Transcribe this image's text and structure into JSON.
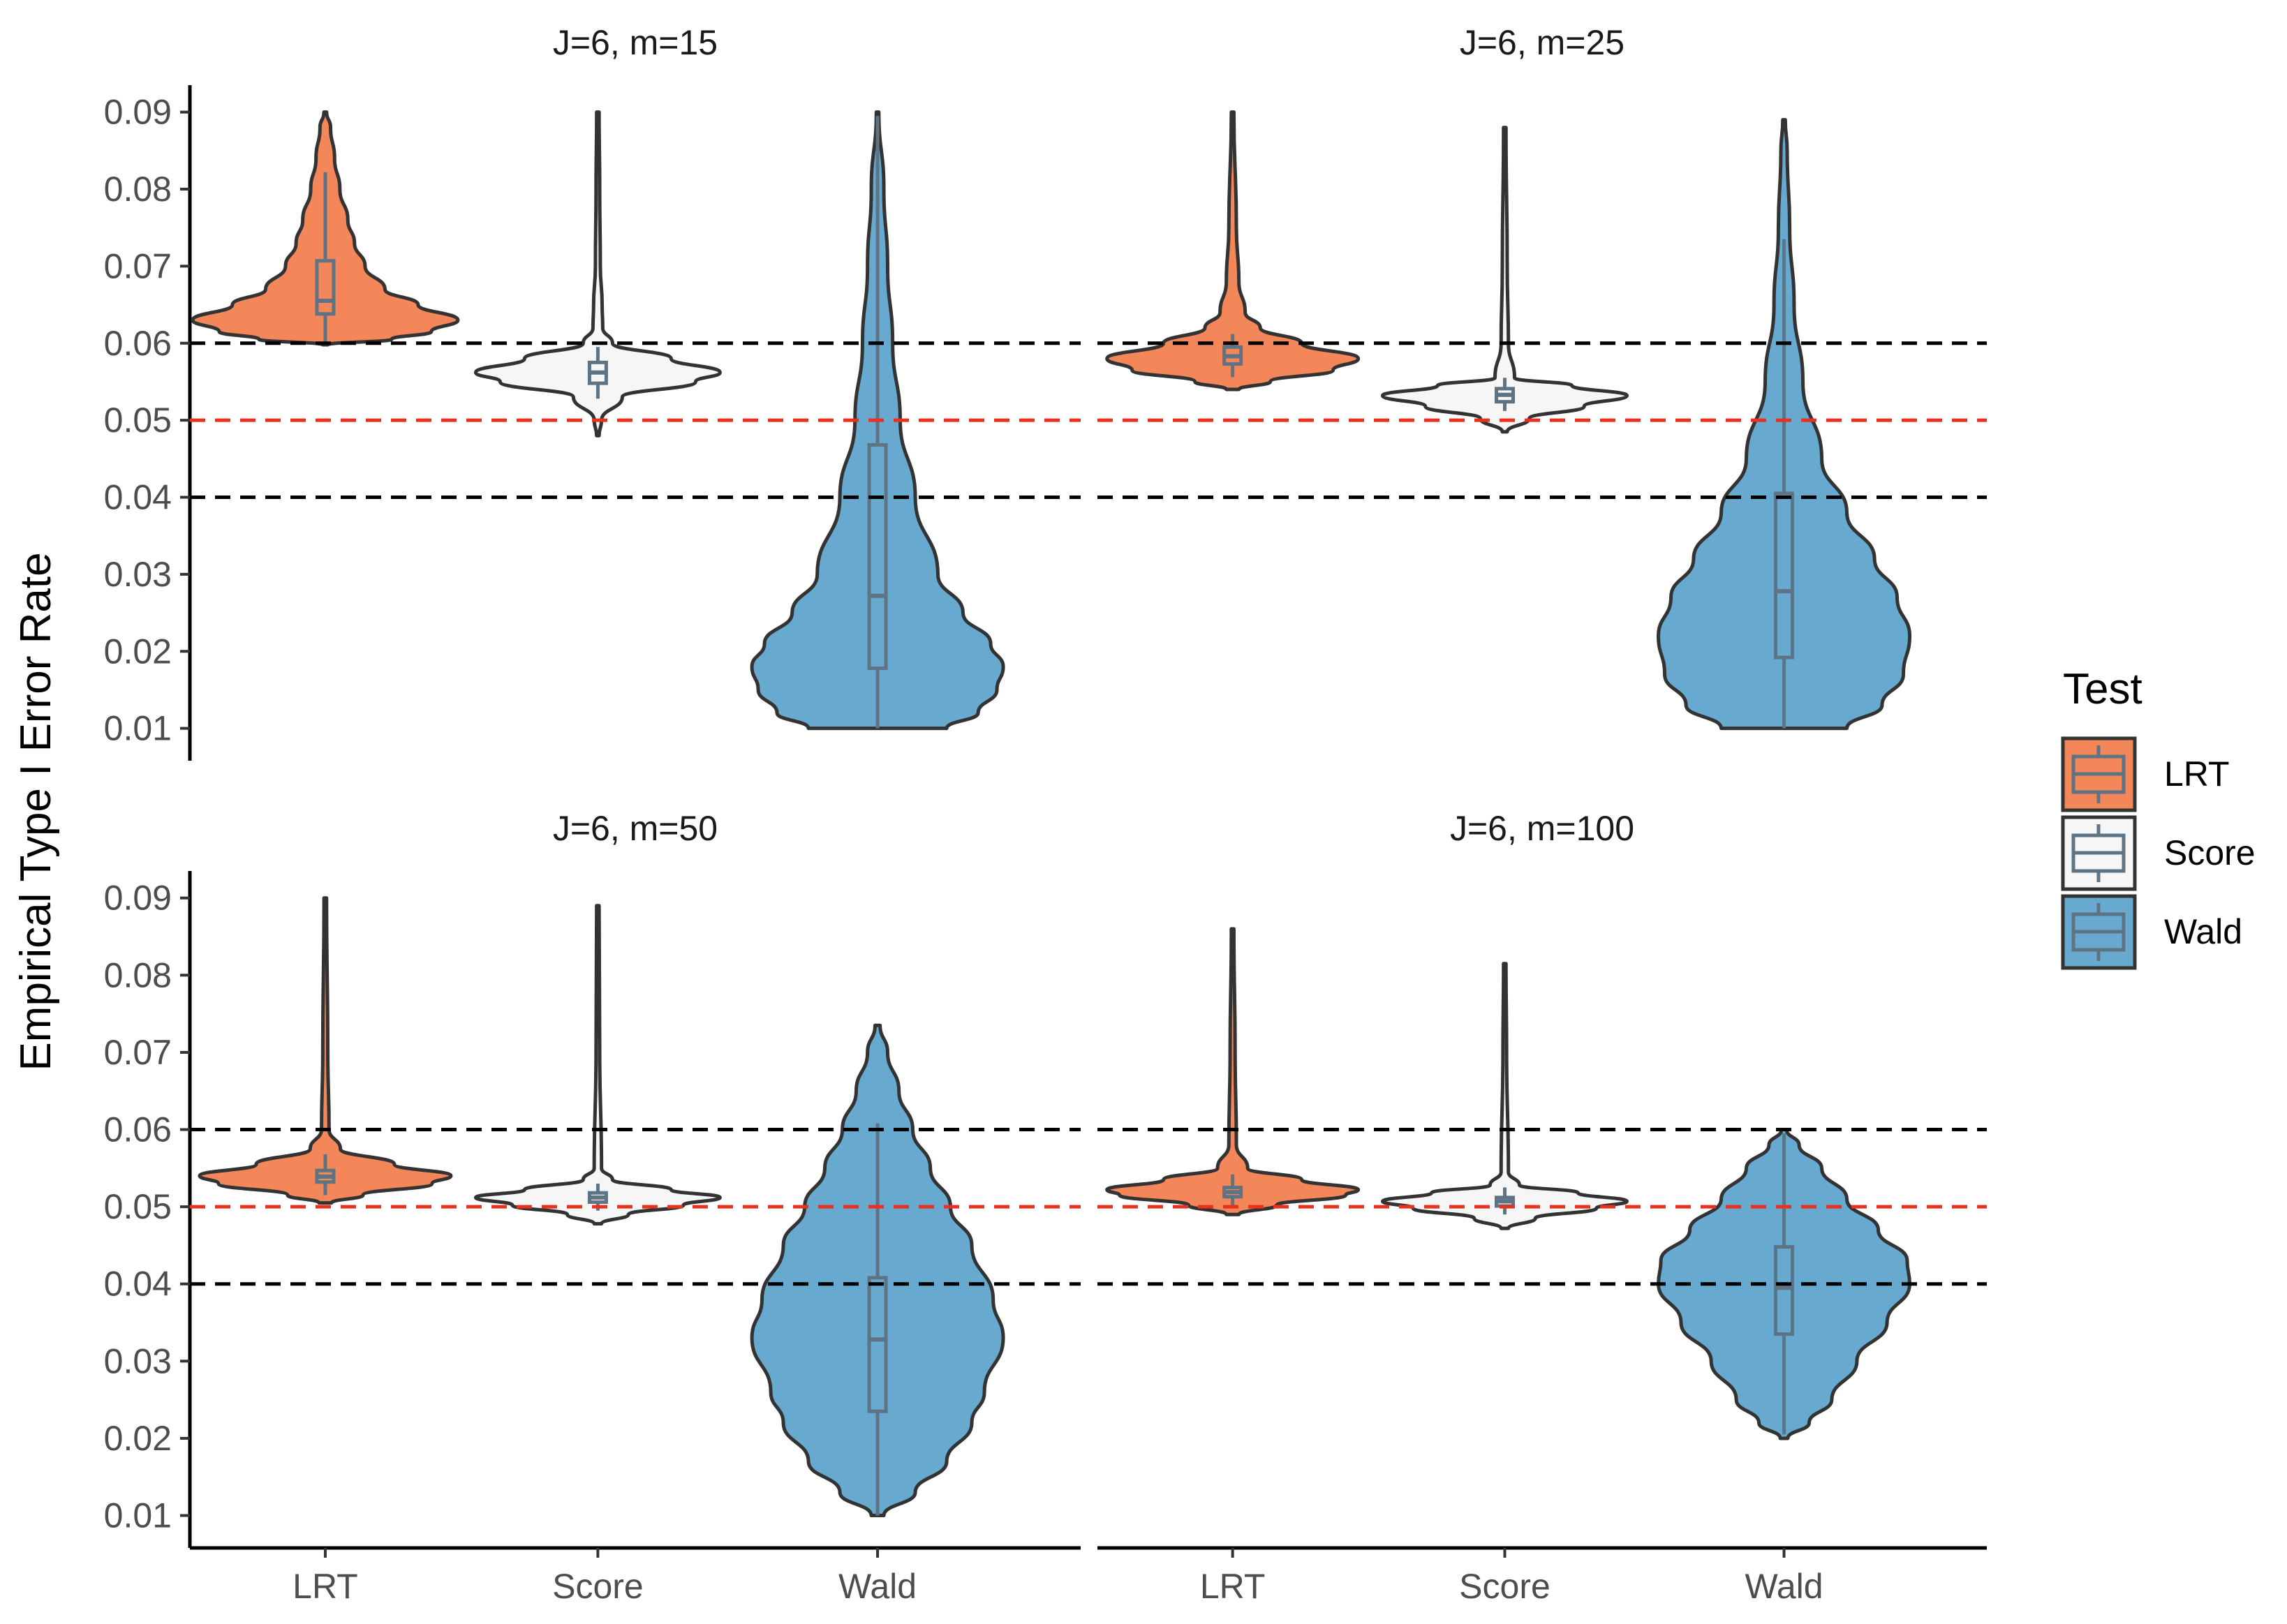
{
  "chart_data": {
    "type": "violin",
    "ylabel": "Empirical Type I Error Rate",
    "xlabel": "",
    "categories": [
      "LRT",
      "Score",
      "Wald"
    ],
    "ylim": [
      0.0058,
      0.0935
    ],
    "yticks": [
      0.01,
      0.02,
      0.03,
      0.04,
      0.05,
      0.06,
      0.07,
      0.08,
      0.09
    ],
    "ytick_labels": [
      "0.01",
      "0.02",
      "0.03",
      "0.04",
      "0.05",
      "0.06",
      "0.07",
      "0.08",
      "0.09"
    ],
    "reference_lines": [
      {
        "value": 0.06,
        "color": "#000000",
        "style": "dashed"
      },
      {
        "value": 0.05,
        "color": "#e8321f",
        "style": "dashed"
      },
      {
        "value": 0.04,
        "color": "#000000",
        "style": "dashed"
      }
    ],
    "colors": {
      "LRT": "#f4875a",
      "Score": "#f6f6f6",
      "Wald": "#67a9cf",
      "outline": "#333333",
      "box": "#5e7384"
    },
    "legend": {
      "title": "Test",
      "entries": [
        "LRT",
        "Score",
        "Wald"
      ],
      "position": "right"
    },
    "panels": [
      {
        "title": "J=6, m=15",
        "series": [
          {
            "name": "LRT",
            "profile": [
              [
                0.0598,
                0.02
              ],
              [
                0.0605,
                0.5
              ],
              [
                0.0615,
                0.8
              ],
              [
                0.063,
                1.0
              ],
              [
                0.065,
                0.7
              ],
              [
                0.067,
                0.45
              ],
              [
                0.07,
                0.3
              ],
              [
                0.073,
                0.22
              ],
              [
                0.076,
                0.17
              ],
              [
                0.08,
                0.11
              ],
              [
                0.084,
                0.07
              ],
              [
                0.088,
                0.04
              ],
              [
                0.09,
                0.01
              ]
            ],
            "box": {
              "q1": 0.0638,
              "median": 0.0655,
              "q3": 0.0707,
              "whisker_low": 0.0602,
              "whisker_high": 0.0822
            }
          },
          {
            "name": "Score",
            "profile": [
              [
                0.048,
                0.01
              ],
              [
                0.05,
                0.03
              ],
              [
                0.053,
                0.2
              ],
              [
                0.055,
                0.8
              ],
              [
                0.0562,
                1.0
              ],
              [
                0.058,
                0.6
              ],
              [
                0.06,
                0.12
              ],
              [
                0.062,
                0.04
              ],
              [
                0.065,
                0.035
              ],
              [
                0.07,
                0.02
              ],
              [
                0.08,
                0.015
              ],
              [
                0.09,
                0.01
              ]
            ],
            "box": {
              "q1": 0.0548,
              "median": 0.0562,
              "q3": 0.0575,
              "whisker_low": 0.0528,
              "whisker_high": 0.0595
            }
          },
          {
            "name": "Wald",
            "profile": [
              [
                0.01,
                0.55
              ],
              [
                0.012,
                0.8
              ],
              [
                0.015,
                0.95
              ],
              [
                0.018,
                1.0
              ],
              [
                0.021,
                0.9
              ],
              [
                0.025,
                0.68
              ],
              [
                0.03,
                0.48
              ],
              [
                0.04,
                0.3
              ],
              [
                0.05,
                0.18
              ],
              [
                0.06,
                0.12
              ],
              [
                0.07,
                0.08
              ],
              [
                0.08,
                0.05
              ],
              [
                0.09,
                0.01
              ]
            ],
            "box": {
              "q1": 0.0178,
              "median": 0.0272,
              "q3": 0.0468,
              "whisker_low": 0.01,
              "whisker_high": 0.0895
            }
          }
        ]
      },
      {
        "title": "J=6, m=25",
        "series": [
          {
            "name": "LRT",
            "profile": [
              [
                0.054,
                0.05
              ],
              [
                0.055,
                0.3
              ],
              [
                0.0565,
                0.8
              ],
              [
                0.058,
                1.0
              ],
              [
                0.06,
                0.55
              ],
              [
                0.062,
                0.22
              ],
              [
                0.064,
                0.1
              ],
              [
                0.068,
                0.05
              ],
              [
                0.075,
                0.03
              ],
              [
                0.09,
                0.01
              ]
            ],
            "box": {
              "q1": 0.0573,
              "median": 0.0583,
              "q3": 0.0595,
              "whisker_low": 0.0556,
              "whisker_high": 0.0612
            }
          },
          {
            "name": "Score",
            "profile": [
              [
                0.0485,
                0.02
              ],
              [
                0.0502,
                0.2
              ],
              [
                0.0518,
                0.65
              ],
              [
                0.0532,
                1.0
              ],
              [
                0.0545,
                0.55
              ],
              [
                0.0555,
                0.08
              ],
              [
                0.06,
                0.03
              ],
              [
                0.07,
                0.02
              ],
              [
                0.088,
                0.01
              ]
            ],
            "box": {
              "q1": 0.0524,
              "median": 0.0533,
              "q3": 0.0541,
              "whisker_low": 0.0512,
              "whisker_high": 0.0555
            }
          },
          {
            "name": "Wald",
            "profile": [
              [
                0.01,
                0.5
              ],
              [
                0.013,
                0.78
              ],
              [
                0.017,
                0.95
              ],
              [
                0.022,
                1.0
              ],
              [
                0.027,
                0.9
              ],
              [
                0.032,
                0.72
              ],
              [
                0.038,
                0.5
              ],
              [
                0.045,
                0.3
              ],
              [
                0.055,
                0.15
              ],
              [
                0.065,
                0.08
              ],
              [
                0.075,
                0.045
              ],
              [
                0.085,
                0.025
              ],
              [
                0.089,
                0.01
              ]
            ],
            "box": {
              "q1": 0.0192,
              "median": 0.0278,
              "q3": 0.0405,
              "whisker_low": 0.01,
              "whisker_high": 0.0735
            }
          }
        ]
      },
      {
        "title": "J=6, m=50",
        "series": [
          {
            "name": "LRT",
            "profile": [
              [
                0.0505,
                0.05
              ],
              [
                0.0515,
                0.3
              ],
              [
                0.053,
                0.85
              ],
              [
                0.054,
                1.0
              ],
              [
                0.0555,
                0.55
              ],
              [
                0.0575,
                0.12
              ],
              [
                0.06,
                0.03
              ],
              [
                0.07,
                0.02
              ],
              [
                0.09,
                0.01
              ]
            ],
            "box": {
              "q1": 0.0532,
              "median": 0.0539,
              "q3": 0.0547,
              "whisker_low": 0.0515,
              "whisker_high": 0.0568
            }
          },
          {
            "name": "Score",
            "profile": [
              [
                0.0478,
                0.03
              ],
              [
                0.049,
                0.25
              ],
              [
                0.0502,
                0.7
              ],
              [
                0.0512,
                1.0
              ],
              [
                0.0522,
                0.6
              ],
              [
                0.0535,
                0.12
              ],
              [
                0.055,
                0.03
              ],
              [
                0.07,
                0.015
              ],
              [
                0.089,
                0.01
              ]
            ],
            "box": {
              "q1": 0.0506,
              "median": 0.0512,
              "q3": 0.0518,
              "whisker_low": 0.0495,
              "whisker_high": 0.053
            }
          },
          {
            "name": "Wald",
            "profile": [
              [
                0.01,
                0.05
              ],
              [
                0.013,
                0.3
              ],
              [
                0.017,
                0.55
              ],
              [
                0.022,
                0.75
              ],
              [
                0.026,
                0.85
              ],
              [
                0.033,
                1.0
              ],
              [
                0.038,
                0.92
              ],
              [
                0.045,
                0.75
              ],
              [
                0.05,
                0.58
              ],
              [
                0.055,
                0.42
              ],
              [
                0.06,
                0.28
              ],
              [
                0.065,
                0.17
              ],
              [
                0.07,
                0.08
              ],
              [
                0.0735,
                0.02
              ]
            ],
            "box": {
              "q1": 0.0235,
              "median": 0.0328,
              "q3": 0.0408,
              "whisker_low": 0.01,
              "whisker_high": 0.0608
            }
          }
        ]
      },
      {
        "title": "J=6, m=100",
        "series": [
          {
            "name": "LRT",
            "profile": [
              [
                0.049,
                0.05
              ],
              [
                0.0502,
                0.35
              ],
              [
                0.0515,
                0.9
              ],
              [
                0.0522,
                1.0
              ],
              [
                0.0535,
                0.55
              ],
              [
                0.055,
                0.12
              ],
              [
                0.058,
                0.03
              ],
              [
                0.07,
                0.02
              ],
              [
                0.086,
                0.01
              ]
            ],
            "box": {
              "q1": 0.0513,
              "median": 0.0519,
              "q3": 0.0525,
              "whisker_low": 0.0498,
              "whisker_high": 0.0542
            }
          },
          {
            "name": "Score",
            "profile": [
              [
                0.0472,
                0.03
              ],
              [
                0.0485,
                0.25
              ],
              [
                0.0498,
                0.75
              ],
              [
                0.0507,
                1.0
              ],
              [
                0.0518,
                0.6
              ],
              [
                0.0528,
                0.12
              ],
              [
                0.0545,
                0.03
              ],
              [
                0.07,
                0.015
              ],
              [
                0.0815,
                0.01
              ]
            ],
            "box": {
              "q1": 0.0501,
              "median": 0.0507,
              "q3": 0.0512,
              "whisker_low": 0.049,
              "whisker_high": 0.0525
            }
          },
          {
            "name": "Wald",
            "profile": [
              [
                0.02,
                0.03
              ],
              [
                0.022,
                0.2
              ],
              [
                0.025,
                0.38
              ],
              [
                0.03,
                0.58
              ],
              [
                0.035,
                0.82
              ],
              [
                0.04,
                1.0
              ],
              [
                0.043,
                0.98
              ],
              [
                0.047,
                0.75
              ],
              [
                0.051,
                0.5
              ],
              [
                0.055,
                0.3
              ],
              [
                0.058,
                0.12
              ],
              [
                0.06,
                0.02
              ]
            ],
            "box": {
              "q1": 0.0335,
              "median": 0.0395,
              "q3": 0.0448,
              "whisker_low": 0.0205,
              "whisker_high": 0.0595
            }
          }
        ]
      }
    ]
  }
}
